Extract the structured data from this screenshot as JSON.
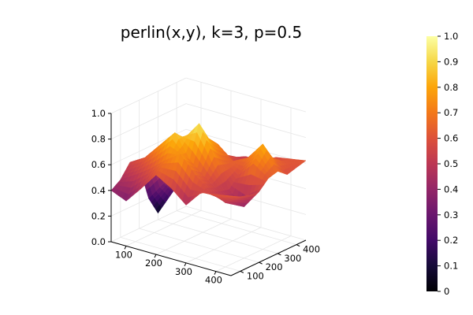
{
  "chart_data": {
    "type": "surface",
    "title": "perlin(x,y), k=3, p=0.5",
    "xlabel": "",
    "ylabel": "",
    "zlabel": "",
    "xlim": [
      50,
      450
    ],
    "ylim": [
      50,
      450
    ],
    "zlim": [
      0,
      1
    ],
    "x_ticks": [
      "100",
      "200",
      "300",
      "400"
    ],
    "y_ticks": [
      "100",
      "200",
      "300",
      "400"
    ],
    "z_ticks": [
      "0.0",
      "0.2",
      "0.4",
      "0.6",
      "0.8",
      "1.0"
    ],
    "colorbar": {
      "colormap": "inferno",
      "range": [
        0,
        1
      ],
      "ticks": [
        "0",
        "0.1",
        "0.2",
        "0.3",
        "0.4",
        "0.5",
        "0.6",
        "0.7",
        "0.8",
        "0.9",
        "1.0"
      ]
    },
    "grid": true,
    "legend": "none",
    "surface_x": [
      50,
      100,
      150,
      200,
      250,
      300,
      350,
      400,
      450
    ],
    "surface_y": [
      50,
      100,
      150,
      200,
      250,
      300,
      350,
      400,
      450
    ],
    "surface_z": [
      [
        0.4,
        0.35,
        0.48,
        0.62,
        0.55,
        0.45,
        0.58,
        0.6,
        0.62
      ],
      [
        0.45,
        0.52,
        0.6,
        0.7,
        0.78,
        0.65,
        0.55,
        0.5,
        0.58
      ],
      [
        0.55,
        0.62,
        0.75,
        0.88,
        0.7,
        0.6,
        0.52,
        0.45,
        0.56
      ],
      [
        0.48,
        0.6,
        0.7,
        0.8,
        0.95,
        0.72,
        0.5,
        0.4,
        0.55
      ],
      [
        0.2,
        0.35,
        0.55,
        0.65,
        0.8,
        0.66,
        0.58,
        0.7,
        0.62
      ],
      [
        0.05,
        0.25,
        0.45,
        0.6,
        0.72,
        0.62,
        0.68,
        0.82,
        0.64
      ],
      [
        0.3,
        0.4,
        0.6,
        0.55,
        0.6,
        0.52,
        0.56,
        0.68,
        0.58
      ],
      [
        0.35,
        0.45,
        0.52,
        0.48,
        0.55,
        0.5,
        0.55,
        0.62,
        0.6
      ],
      [
        0.4,
        0.42,
        0.5,
        0.45,
        0.52,
        0.52,
        0.58,
        0.6,
        0.62
      ]
    ]
  }
}
